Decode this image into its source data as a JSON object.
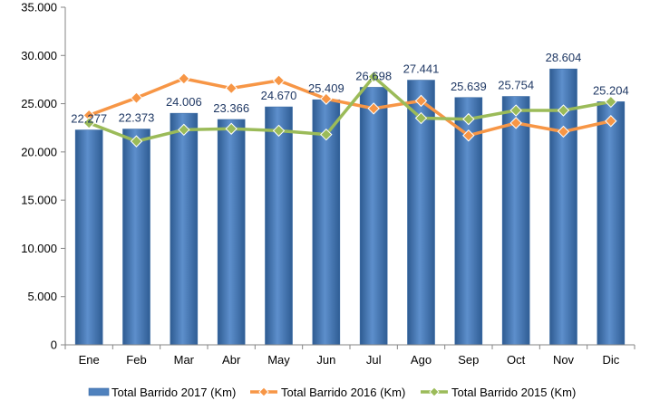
{
  "chart_data": {
    "type": "bar",
    "categories": [
      "Ene",
      "Feb",
      "Mar",
      "Abr",
      "May",
      "Jun",
      "Jul",
      "Ago",
      "Sep",
      "Oct",
      "Nov",
      "Dic"
    ],
    "ylim": [
      0,
      35000
    ],
    "yticks": [
      0,
      5000,
      10000,
      15000,
      20000,
      25000,
      30000,
      35000
    ],
    "ytick_labels": [
      "0",
      "5.000",
      "10.000",
      "15.000",
      "20.000",
      "25.000",
      "30.000",
      "35.000"
    ],
    "grid": false,
    "legend_position": "bottom",
    "series": [
      {
        "name": "Total Barrido 2017 (Km)",
        "type": "bar",
        "color": "#4F81BD",
        "values": [
          22277,
          22373,
          24006,
          23366,
          24670,
          25409,
          26698,
          27441,
          25639,
          25754,
          28604,
          25204
        ],
        "labels": [
          "22.277",
          "22.373",
          "24.006",
          "23.366",
          "24.670",
          "25.409",
          "26.698",
          "27.441",
          "25.639",
          "25.754",
          "28.604",
          "25.204"
        ]
      },
      {
        "name": "Total Barrido 2016 (Km)",
        "type": "line",
        "color": "#F79646",
        "values": [
          23800,
          25600,
          27600,
          26600,
          27400,
          25500,
          24500,
          25300,
          21700,
          23000,
          22100,
          23200
        ]
      },
      {
        "name": "Total Barrido 2015 (Km)",
        "type": "line",
        "color": "#9BBB59",
        "values": [
          23000,
          21100,
          22300,
          22400,
          22200,
          21800,
          27800,
          23500,
          23400,
          24300,
          24300,
          25200
        ]
      }
    ]
  }
}
